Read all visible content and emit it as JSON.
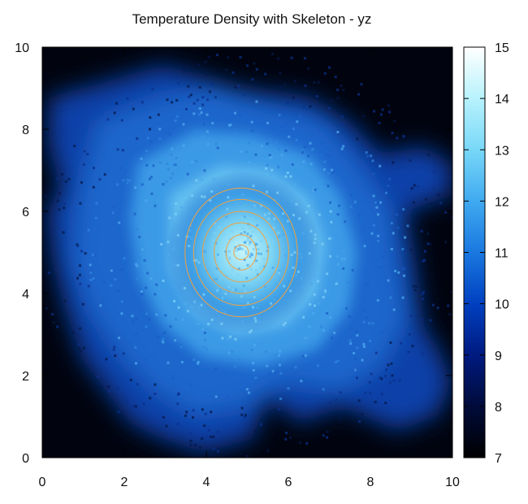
{
  "chart_data": {
    "type": "heatmap",
    "title": "Temperature Density with Skeleton - yz",
    "xlabel": "",
    "ylabel": "",
    "xlim": [
      0,
      10
    ],
    "ylim": [
      0,
      10
    ],
    "x_ticks": [
      "0",
      "2",
      "4",
      "6",
      "8",
      "10"
    ],
    "y_ticks": [
      "0",
      "2",
      "4",
      "6",
      "8",
      "10"
    ],
    "colorbar": {
      "range": [
        7,
        15
      ],
      "ticks": [
        "7",
        "8",
        "9",
        "10",
        "11",
        "12",
        "13",
        "14",
        "15"
      ],
      "colors": [
        "#000000",
        "#000b3a",
        "#001a80",
        "#0040c0",
        "#1a78e0",
        "#40aaf0",
        "#78d8f8",
        "#b8f2fc",
        "#ffffff"
      ]
    },
    "density_field": {
      "core": {
        "y": 5.0,
        "z": 5.0,
        "peak_value": 14.3
      },
      "background_value": 7.0
    },
    "skeleton_contours": {
      "center": {
        "y": 4.85,
        "z": 5.0
      },
      "radii_x": [
        0.18,
        0.37,
        0.66,
        0.94,
        1.16,
        1.37
      ],
      "radii_y": [
        0.18,
        0.43,
        0.72,
        1.0,
        1.29,
        1.57
      ],
      "color": "#f0a040"
    },
    "grid": false
  }
}
